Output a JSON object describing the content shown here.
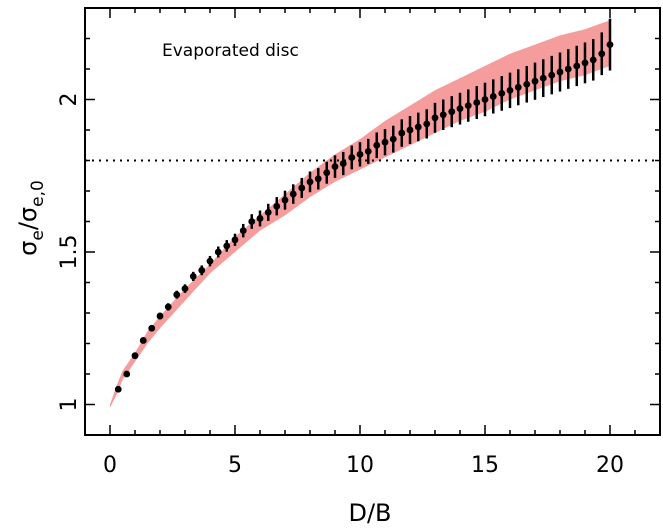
{
  "chart_data": {
    "type": "scatter",
    "title": "",
    "annotation": "Evaporated disc",
    "xlabel": "D/B",
    "ylabel": {
      "base": "σ",
      "base_sub": "e",
      "slash": "/",
      "denominator": "σ",
      "denominator_sub": "e,0"
    },
    "xlim": [
      -1,
      22
    ],
    "ylim": [
      0.9,
      2.3
    ],
    "x_ticks": [
      0,
      5,
      10,
      15,
      20
    ],
    "x_tick_labels": [
      "0",
      "5",
      "10",
      "15",
      "20"
    ],
    "y_ticks": [
      1,
      1.5,
      2
    ],
    "y_tick_labels": [
      "1",
      "1.5",
      "2"
    ],
    "y_tick_labels_rotated": true,
    "grid": false,
    "legend": "none",
    "reference_line": {
      "y": 1.8,
      "style": "dotted",
      "color": "#000000"
    },
    "band": {
      "color": "#f59c9c",
      "x": [
        0.0,
        0.25,
        0.5,
        1,
        1.5,
        2,
        3,
        4,
        5,
        6,
        7,
        8,
        9,
        10,
        11,
        12,
        13,
        14,
        15,
        16,
        17,
        18,
        19,
        20
      ],
      "lower": [
        0.99,
        1.03,
        1.08,
        1.14,
        1.2,
        1.25,
        1.34,
        1.43,
        1.5,
        1.57,
        1.62,
        1.68,
        1.73,
        1.77,
        1.81,
        1.85,
        1.89,
        1.93,
        1.96,
        2.0,
        2.03,
        2.06,
        2.08,
        2.11
      ],
      "upper": [
        1.0,
        1.06,
        1.11,
        1.17,
        1.24,
        1.29,
        1.38,
        1.46,
        1.55,
        1.62,
        1.69,
        1.76,
        1.82,
        1.87,
        1.93,
        1.98,
        2.03,
        2.07,
        2.11,
        2.15,
        2.18,
        2.21,
        2.23,
        2.26
      ]
    },
    "series": [
      {
        "color": "#000000",
        "x": [
          0.33,
          0.67,
          1.0,
          1.33,
          1.67,
          2.0,
          2.33,
          2.67,
          3.0,
          3.33,
          3.67,
          4.0,
          4.33,
          4.67,
          5.0,
          5.33,
          5.67,
          6.0,
          6.33,
          6.67,
          7.0,
          7.33,
          7.67,
          8.0,
          8.33,
          8.67,
          9.0,
          9.33,
          9.67,
          10.0,
          10.33,
          10.67,
          11.0,
          11.33,
          11.67,
          12.0,
          12.33,
          12.67,
          13.0,
          13.33,
          13.67,
          14.0,
          14.33,
          14.67,
          15.0,
          15.33,
          15.67,
          16.0,
          16.33,
          16.67,
          17.0,
          17.33,
          17.67,
          18.0,
          18.33,
          18.67,
          19.0,
          19.33,
          19.67,
          20.0
        ],
        "y": [
          1.05,
          1.1,
          1.16,
          1.21,
          1.25,
          1.29,
          1.32,
          1.36,
          1.38,
          1.42,
          1.44,
          1.47,
          1.5,
          1.52,
          1.54,
          1.57,
          1.6,
          1.61,
          1.63,
          1.65,
          1.67,
          1.69,
          1.71,
          1.73,
          1.74,
          1.76,
          1.78,
          1.79,
          1.81,
          1.82,
          1.83,
          1.85,
          1.86,
          1.87,
          1.89,
          1.9,
          1.91,
          1.92,
          1.94,
          1.95,
          1.96,
          1.97,
          1.98,
          1.99,
          2.0,
          2.01,
          2.02,
          2.03,
          2.04,
          2.05,
          2.06,
          2.07,
          2.08,
          2.09,
          2.1,
          2.11,
          2.12,
          2.13,
          2.15,
          2.18
        ],
        "err": [
          0.005,
          0.006,
          0.008,
          0.009,
          0.01,
          0.011,
          0.012,
          0.013,
          0.014,
          0.015,
          0.016,
          0.017,
          0.018,
          0.019,
          0.02,
          0.022,
          0.024,
          0.026,
          0.028,
          0.03,
          0.031,
          0.032,
          0.033,
          0.034,
          0.035,
          0.036,
          0.037,
          0.038,
          0.039,
          0.04,
          0.041,
          0.042,
          0.043,
          0.044,
          0.045,
          0.046,
          0.047,
          0.048,
          0.049,
          0.05,
          0.051,
          0.052,
          0.053,
          0.054,
          0.055,
          0.056,
          0.057,
          0.058,
          0.059,
          0.06,
          0.061,
          0.062,
          0.063,
          0.064,
          0.065,
          0.066,
          0.067,
          0.068,
          0.07,
          0.085
        ]
      }
    ]
  }
}
